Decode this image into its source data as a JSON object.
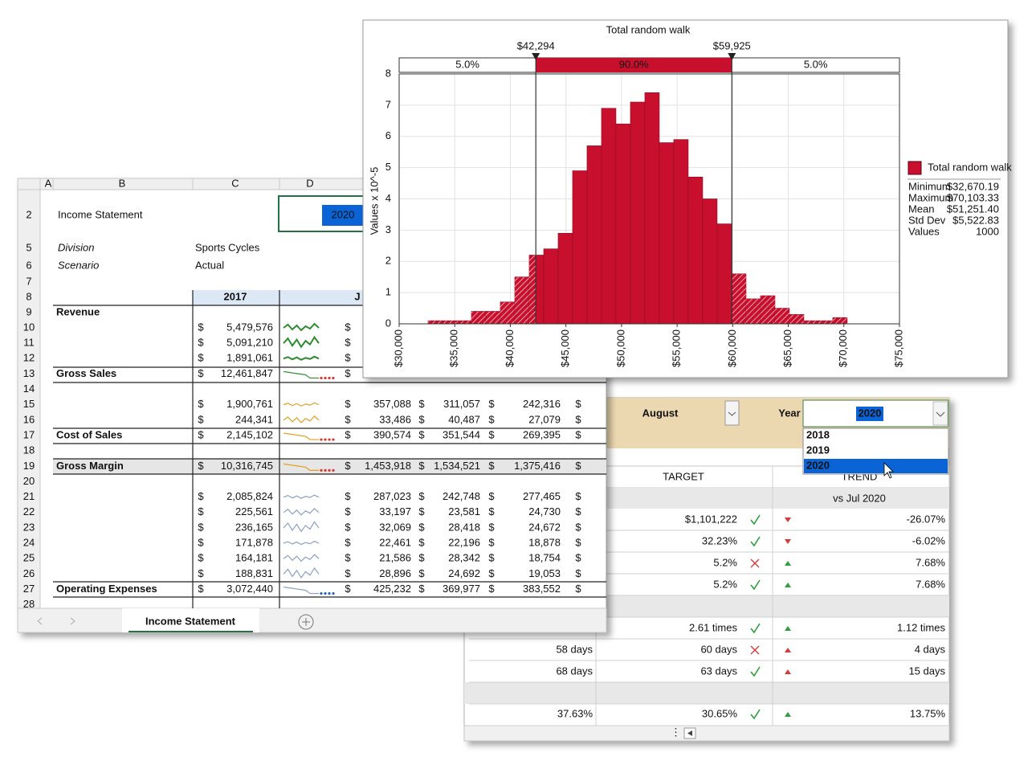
{
  "dashboard": {
    "month": "August",
    "year_label": "Year",
    "year_selected": 2020,
    "year_options": [
      2018,
      2019,
      2020
    ],
    "headers": [
      "TARGET",
      "TREND"
    ],
    "comparison": "vs Jul 2020",
    "rows": [
      {
        "target": "$1,101,222",
        "status": "ok",
        "trend_dir": "down",
        "trend_good": false,
        "trend": "-26.07%"
      },
      {
        "target": "32.23%",
        "status": "ok",
        "trend_dir": "down",
        "trend_good": false,
        "trend": "-6.02%"
      },
      {
        "target": "5.2%",
        "status": "fail",
        "trend_dir": "up",
        "trend_good": true,
        "trend": "7.68%"
      },
      {
        "target": "5.2%",
        "status": "ok",
        "trend_dir": "up",
        "trend_good": true,
        "trend": "7.68%"
      },
      {
        "target": "2.61 times",
        "status": "ok",
        "trend_dir": "up",
        "trend_good": true,
        "trend": "1.12 times"
      },
      {
        "actual": "58 days",
        "target": "60 days",
        "status": "fail",
        "trend_dir": "up",
        "trend_good": false,
        "trend": "4  days"
      },
      {
        "actual": "68 days",
        "target": "63 days",
        "status": "ok",
        "trend_dir": "up",
        "trend_good": false,
        "trend": "15  days"
      },
      {
        "actual": "37.63%",
        "target": "30.65%",
        "status": "ok",
        "trend_dir": "up",
        "trend_good": true,
        "trend": "13.75%"
      }
    ]
  },
  "spreadsheet": {
    "columns": [
      "A",
      "B",
      "C",
      "D"
    ],
    "row_headers": [
      2,
      5,
      6,
      7,
      8,
      9,
      10,
      11,
      12,
      13,
      14,
      15,
      16,
      17,
      18,
      19,
      20,
      21,
      22,
      23,
      24,
      25,
      26,
      27,
      28
    ],
    "title": "Income Statement",
    "year": 2020,
    "division_label": "Division",
    "division": "Sports Cycles",
    "scenario_label": "Scenario",
    "scenario": "Actual",
    "year_header": 2017,
    "next_header": "J",
    "currency": "$",
    "rows": {
      "9": {
        "label": "Revenue"
      },
      "10": {
        "c": "5,479,576"
      },
      "11": {
        "c": "5,091,210"
      },
      "12": {
        "c": "1,891,061"
      },
      "13": {
        "label": "Gross Sales",
        "c": "12,461,847"
      },
      "15": {
        "c": "1,900,761",
        "e": "357,088",
        "f": "311,057",
        "g": "242,316"
      },
      "16": {
        "c": "244,341",
        "e": "33,486",
        "f": "40,487",
        "g": "27,079"
      },
      "17": {
        "label": "Cost of Sales",
        "c": "2,145,102",
        "e": "390,574",
        "f": "351,544",
        "g": "269,395"
      },
      "19": {
        "label": "Gross Margin",
        "c": "10,316,745",
        "e": "1,453,918",
        "f": "1,534,521",
        "g": "1,375,416"
      },
      "21": {
        "c": "2,085,824",
        "e": "287,023",
        "f": "242,748",
        "g": "277,465"
      },
      "22": {
        "c": "225,561",
        "e": "33,197",
        "f": "23,581",
        "g": "24,730"
      },
      "23": {
        "c": "236,165",
        "e": "32,069",
        "f": "28,418",
        "g": "24,672"
      },
      "24": {
        "c": "171,878",
        "e": "22,461",
        "f": "22,196",
        "g": "18,878"
      },
      "25": {
        "c": "164,181",
        "e": "21,586",
        "f": "28,342",
        "g": "18,754"
      },
      "26": {
        "c": "188,831",
        "e": "28,896",
        "f": "24,692",
        "g": "19,053"
      },
      "27": {
        "label": "Operating Expenses",
        "c": "3,072,440",
        "e": "425,232",
        "f": "369,977",
        "g": "383,552"
      }
    },
    "tab": "Income Statement"
  },
  "chart_data": {
    "type": "histogram",
    "title": "Total random walk",
    "y_label": "Values x 10^-5",
    "color": "#c8102e",
    "grid": true,
    "bins": [
      32600,
      33900,
      35200,
      36500,
      37800,
      39100,
      40400,
      41700,
      43000,
      44300,
      45600,
      46900,
      48200,
      49500,
      50800,
      52100,
      53400,
      54700,
      56000,
      57300,
      58600,
      59900,
      61200,
      62500,
      63800,
      65100,
      66400,
      67700,
      69000,
      70300
    ],
    "values": [
      0.1,
      0.1,
      0.1,
      0.4,
      0.4,
      0.7,
      1.5,
      2.2,
      2.4,
      2.9,
      4.9,
      5.7,
      6.9,
      6.4,
      7.1,
      7.4,
      5.8,
      5.9,
      4.7,
      4.0,
      3.2,
      1.6,
      0.8,
      0.9,
      0.5,
      0.3,
      0.1,
      0.1,
      0.2
    ],
    "xlim": [
      30000,
      75000
    ],
    "ylim": [
      0,
      8
    ],
    "xticks": [
      {
        "value": 30000,
        "label": "$30,000"
      },
      {
        "value": 35000,
        "label": "$35,000"
      },
      {
        "value": 40000,
        "label": "$40,000"
      },
      {
        "value": 45000,
        "label": "$45,000"
      },
      {
        "value": 50000,
        "label": "$50,000"
      },
      {
        "value": 55000,
        "label": "$55,000"
      },
      {
        "value": 60000,
        "label": "$60,000"
      },
      {
        "value": 65000,
        "label": "$65,000"
      },
      {
        "value": 70000,
        "label": "$70,000"
      },
      {
        "value": 75000,
        "label": "$75,000"
      }
    ],
    "yticks": [
      0,
      1,
      2,
      3,
      4,
      5,
      6,
      7,
      8
    ],
    "delimiters": [
      {
        "value": 42294,
        "label": "$42,294"
      },
      {
        "value": 59925,
        "label": "$59,925"
      }
    ],
    "bands": {
      "values": [
        5,
        90,
        5
      ],
      "value_labels": [
        "5.0%",
        "90.0%",
        "5.0%"
      ]
    },
    "legend": {
      "name": "Total random walk",
      "stats": [
        {
          "label": "Minimum",
          "value": "$32,670.19"
        },
        {
          "label": "Maximum",
          "value": "$70,103.33"
        },
        {
          "label": "Mean",
          "value": "$51,251.40"
        },
        {
          "label": "Std Dev",
          "value": "$5,522.83"
        },
        {
          "label": "Values",
          "value": "1000"
        }
      ]
    }
  }
}
